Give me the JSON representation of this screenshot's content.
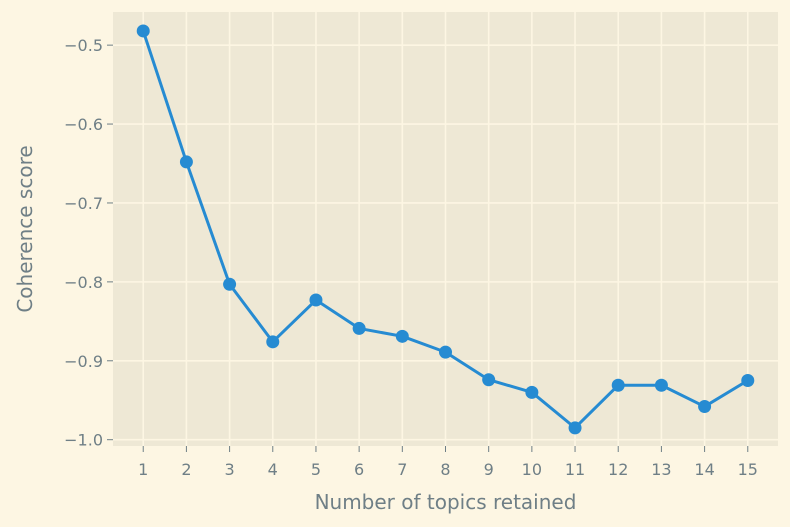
{
  "chart_data": {
    "type": "line",
    "title": "",
    "xlabel": "Number of topics retained",
    "ylabel": "Coherence score",
    "x": [
      1,
      2,
      3,
      4,
      5,
      6,
      7,
      8,
      9,
      10,
      11,
      12,
      13,
      14,
      15
    ],
    "y": [
      -0.482,
      -0.648,
      -0.803,
      -0.876,
      -0.823,
      -0.859,
      -0.869,
      -0.889,
      -0.924,
      -0.94,
      -0.985,
      -0.931,
      -0.931,
      -0.958,
      -0.925
    ],
    "x_ticks": [
      "1",
      "2",
      "3",
      "4",
      "5",
      "6",
      "7",
      "8",
      "9",
      "10",
      "11",
      "12",
      "13",
      "14",
      "15"
    ],
    "y_ticks": [
      -0.5,
      -0.6,
      -0.7,
      -0.8,
      -0.9,
      -1.0
    ],
    "y_tick_labels": [
      "−0.5",
      "−0.6",
      "−0.7",
      "−0.8",
      "−0.9",
      "−1.0"
    ],
    "xlim": [
      0.3,
      15.7
    ],
    "ylim": [
      -1.008,
      -0.458
    ],
    "grid": true,
    "legend": "none",
    "colors": {
      "page_background": "#fdf6e3",
      "plot_background": "#eee8d5",
      "grid": "#fdf6e3",
      "line": "#268bd2",
      "text": "#6f7f86"
    }
  }
}
